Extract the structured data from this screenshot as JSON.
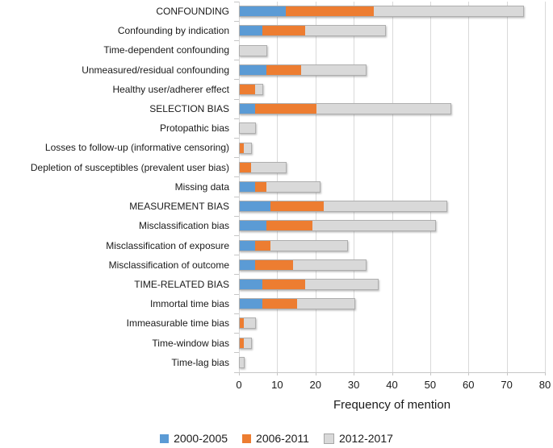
{
  "chart_data": {
    "type": "bar",
    "orientation": "horizontal",
    "stacked": true,
    "title": "",
    "xlabel": "Frequency of mention",
    "ylabel": "",
    "xlim": [
      0,
      80
    ],
    "xticks": [
      0,
      10,
      20,
      30,
      40,
      50,
      60,
      70,
      80
    ],
    "grid": "vertical",
    "legend_position": "bottom",
    "categories": [
      "CONFOUNDING",
      "Confounding by indication",
      "Time-dependent confounding",
      "Unmeasured/residual confounding",
      "Healthy user/adherer effect",
      "SELECTION BIAS",
      "Protopathic bias",
      "Losses to follow-up (informative censoring)",
      "Depletion of susceptibles (prevalent user bias)",
      "Missing data",
      "MEASUREMENT BIAS",
      "Misclassification bias",
      "Misclassification of exposure",
      "Misclassification of outcome",
      "TIME-RELATED BIAS",
      "Immortal time bias",
      "Immeasurable time bias",
      "Time-window bias",
      "Time-lag bias"
    ],
    "series": [
      {
        "name": "2000-2005",
        "color": "#5B9BD5",
        "key_border": "",
        "values": [
          12,
          6,
          0,
          7,
          0,
          4,
          0,
          0,
          0,
          4,
          8,
          7,
          4,
          4,
          6,
          6,
          0,
          0,
          0
        ]
      },
      {
        "name": "2006-2011",
        "color": "#ED7D31",
        "key_border": "",
        "values": [
          23,
          11,
          0,
          9,
          4,
          16,
          0,
          1,
          3,
          3,
          14,
          12,
          4,
          10,
          11,
          9,
          1,
          1,
          0
        ]
      },
      {
        "name": "2012-2017",
        "color": "#D9D9D9",
        "key_border": "#a6a6a6",
        "values": [
          39,
          21,
          7,
          17,
          2,
          35,
          4,
          2,
          9,
          14,
          32,
          32,
          20,
          19,
          19,
          15,
          3,
          2,
          1
        ]
      }
    ],
    "totals": [
      74,
      38,
      7,
      33,
      6,
      55,
      4,
      3,
      12,
      21,
      54,
      51,
      28,
      33,
      36,
      30,
      4,
      3,
      1
    ],
    "gridline_color": "#d9d9d9",
    "axis_color": "#c6c6c6"
  }
}
